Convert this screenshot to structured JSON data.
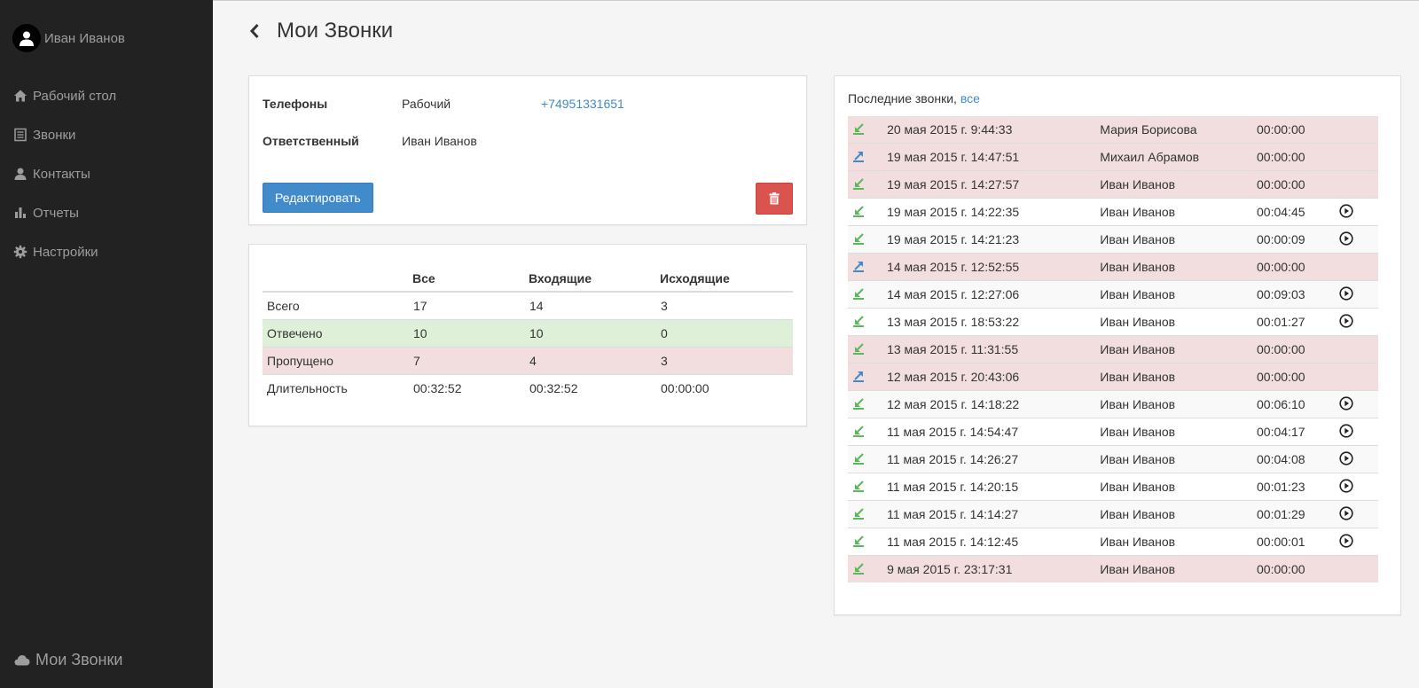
{
  "user": {
    "name": "Иван Иванов"
  },
  "nav": [
    {
      "label": "Рабочий стол",
      "icon": "home-icon"
    },
    {
      "label": "Звонки",
      "icon": "list-icon"
    },
    {
      "label": "Контакты",
      "icon": "user-icon"
    },
    {
      "label": "Отчеты",
      "icon": "bar-chart-icon"
    },
    {
      "label": "Настройки",
      "icon": "gear-icon"
    }
  ],
  "brand": {
    "label": "Мои Звонки",
    "icon": "cloud-icon"
  },
  "page": {
    "title": "Мои Звонки"
  },
  "info": {
    "phones_label": "Телефоны",
    "phone_type": "Рабочий",
    "phone_number": "+74951331651",
    "owner_label": "Ответственный",
    "owner_name": "Иван Иванов",
    "edit_label": "Редактировать"
  },
  "stats": {
    "headers": [
      "",
      "Все",
      "Входящие",
      "Исходящие"
    ],
    "rows": [
      [
        "Всего",
        "17",
        "14",
        "3"
      ],
      [
        "Отвечено",
        "10",
        "10",
        "0"
      ],
      [
        "Пропущено",
        "7",
        "4",
        "3"
      ],
      [
        "Длительность",
        "00:32:52",
        "00:32:52",
        "00:00:00"
      ]
    ]
  },
  "calls": {
    "header_text": "Последние звонки, ",
    "all_link": "все",
    "rows": [
      {
        "direction": "incoming",
        "date": "20 мая 2015 г. 9:44:33",
        "name": "Мария Борисова",
        "duration": "00:00:00",
        "missed": true,
        "play": false
      },
      {
        "direction": "outgoing",
        "date": "19 мая 2015 г. 14:47:51",
        "name": "Михаил Абрамов",
        "duration": "00:00:00",
        "missed": true,
        "play": false
      },
      {
        "direction": "incoming",
        "date": "19 мая 2015 г. 14:27:57",
        "name": "Иван Иванов",
        "duration": "00:00:00",
        "missed": true,
        "play": false
      },
      {
        "direction": "incoming",
        "date": "19 мая 2015 г. 14:22:35",
        "name": "Иван Иванов",
        "duration": "00:04:45",
        "missed": false,
        "play": true
      },
      {
        "direction": "incoming",
        "date": "19 мая 2015 г. 14:21:23",
        "name": "Иван Иванов",
        "duration": "00:00:09",
        "missed": false,
        "play": true
      },
      {
        "direction": "outgoing",
        "date": "14 мая 2015 г. 12:52:55",
        "name": "Иван Иванов",
        "duration": "00:00:00",
        "missed": true,
        "play": false
      },
      {
        "direction": "incoming",
        "date": "14 мая 2015 г. 12:27:06",
        "name": "Иван Иванов",
        "duration": "00:09:03",
        "missed": false,
        "play": true
      },
      {
        "direction": "incoming",
        "date": "13 мая 2015 г. 18:53:22",
        "name": "Иван Иванов",
        "duration": "00:01:27",
        "missed": false,
        "play": true
      },
      {
        "direction": "incoming",
        "date": "13 мая 2015 г. 11:31:55",
        "name": "Иван Иванов",
        "duration": "00:00:00",
        "missed": true,
        "play": false
      },
      {
        "direction": "outgoing",
        "date": "12 мая 2015 г. 20:43:06",
        "name": "Иван Иванов",
        "duration": "00:00:00",
        "missed": true,
        "play": false
      },
      {
        "direction": "incoming",
        "date": "12 мая 2015 г. 14:18:22",
        "name": "Иван Иванов",
        "duration": "00:06:10",
        "missed": false,
        "play": true
      },
      {
        "direction": "incoming",
        "date": "11 мая 2015 г. 14:54:47",
        "name": "Иван Иванов",
        "duration": "00:04:17",
        "missed": false,
        "play": true
      },
      {
        "direction": "incoming",
        "date": "11 мая 2015 г. 14:26:27",
        "name": "Иван Иванов",
        "duration": "00:04:08",
        "missed": false,
        "play": true
      },
      {
        "direction": "incoming",
        "date": "11 мая 2015 г. 14:20:15",
        "name": "Иван Иванов",
        "duration": "00:01:23",
        "missed": false,
        "play": true
      },
      {
        "direction": "incoming",
        "date": "11 мая 2015 г. 14:14:27",
        "name": "Иван Иванов",
        "duration": "00:01:29",
        "missed": false,
        "play": true
      },
      {
        "direction": "incoming",
        "date": "11 мая 2015 г. 14:12:45",
        "name": "Иван Иванов",
        "duration": "00:00:01",
        "missed": false,
        "play": true
      },
      {
        "direction": "incoming",
        "date": "9 мая 2015 г. 23:17:31",
        "name": "Иван Иванов",
        "duration": "00:00:00",
        "missed": true,
        "play": false
      }
    ]
  },
  "colors": {
    "sidebar_bg": "#222222",
    "incoming_icon": "#5cb85c",
    "outgoing_icon": "#428bca",
    "missed_row": "#f2dede",
    "answered_row": "#dff0d8",
    "primary": "#428bca",
    "danger": "#d9534f"
  }
}
